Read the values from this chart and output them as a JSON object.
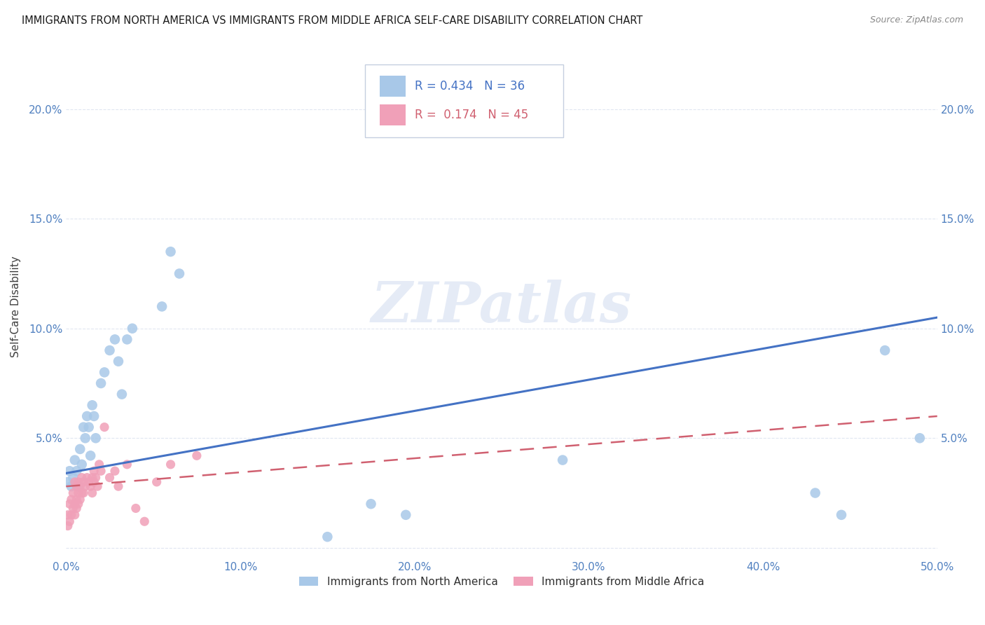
{
  "title": "IMMIGRANTS FROM NORTH AMERICA VS IMMIGRANTS FROM MIDDLE AFRICA SELF-CARE DISABILITY CORRELATION CHART",
  "source": "Source: ZipAtlas.com",
  "ylabel": "Self-Care Disability",
  "xlim": [
    0,
    0.5
  ],
  "ylim": [
    -0.005,
    0.225
  ],
  "xticks": [
    0.0,
    0.1,
    0.2,
    0.3,
    0.4,
    0.5
  ],
  "yticks": [
    0.0,
    0.05,
    0.1,
    0.15,
    0.2
  ],
  "xtick_labels": [
    "0.0%",
    "10.0%",
    "20.0%",
    "30.0%",
    "40.0%",
    "50.0%"
  ],
  "ytick_labels": [
    "",
    "5.0%",
    "10.0%",
    "15.0%",
    "20.0%"
  ],
  "background_color": "#ffffff",
  "watermark": "ZIPatlas",
  "series1_color": "#a8c8e8",
  "series2_color": "#f0a0b8",
  "line1_color": "#4472c4",
  "line2_color": "#d06070",
  "axis_color": "#5080c0",
  "grid_color": "#dde4f0",
  "legend_label1": "Immigrants from North America",
  "legend_label2": "Immigrants from Middle Africa",
  "north_america_x": [
    0.001,
    0.002,
    0.003,
    0.004,
    0.005,
    0.006,
    0.007,
    0.008,
    0.009,
    0.01,
    0.011,
    0.012,
    0.013,
    0.014,
    0.015,
    0.016,
    0.017,
    0.02,
    0.022,
    0.025,
    0.028,
    0.03,
    0.032,
    0.035,
    0.038,
    0.055,
    0.06,
    0.065,
    0.15,
    0.175,
    0.195,
    0.285,
    0.43,
    0.445,
    0.47,
    0.49
  ],
  "north_america_y": [
    0.03,
    0.035,
    0.028,
    0.032,
    0.04,
    0.035,
    0.028,
    0.045,
    0.038,
    0.055,
    0.05,
    0.06,
    0.055,
    0.042,
    0.065,
    0.06,
    0.05,
    0.075,
    0.08,
    0.09,
    0.095,
    0.085,
    0.07,
    0.095,
    0.1,
    0.11,
    0.135,
    0.125,
    0.005,
    0.02,
    0.015,
    0.04,
    0.025,
    0.015,
    0.09,
    0.05
  ],
  "middle_africa_x": [
    0.001,
    0.001,
    0.002,
    0.002,
    0.003,
    0.003,
    0.004,
    0.004,
    0.005,
    0.005,
    0.005,
    0.006,
    0.006,
    0.006,
    0.007,
    0.007,
    0.007,
    0.008,
    0.008,
    0.009,
    0.009,
    0.01,
    0.01,
    0.011,
    0.012,
    0.013,
    0.014,
    0.015,
    0.015,
    0.016,
    0.016,
    0.017,
    0.018,
    0.019,
    0.02,
    0.022,
    0.025,
    0.028,
    0.03,
    0.035,
    0.04,
    0.045,
    0.052,
    0.06,
    0.075
  ],
  "middle_africa_y": [
    0.01,
    0.015,
    0.012,
    0.02,
    0.015,
    0.022,
    0.018,
    0.025,
    0.015,
    0.02,
    0.03,
    0.018,
    0.022,
    0.028,
    0.02,
    0.025,
    0.03,
    0.022,
    0.028,
    0.025,
    0.032,
    0.025,
    0.03,
    0.028,
    0.032,
    0.03,
    0.028,
    0.032,
    0.025,
    0.035,
    0.03,
    0.032,
    0.028,
    0.038,
    0.035,
    0.055,
    0.032,
    0.035,
    0.028,
    0.038,
    0.018,
    0.012,
    0.03,
    0.038,
    0.042
  ],
  "line1_x0": 0.0,
  "line1_y0": 0.034,
  "line1_x1": 0.5,
  "line1_y1": 0.105,
  "line2_x0": 0.0,
  "line2_y0": 0.028,
  "line2_x1": 0.5,
  "line2_y1": 0.06
}
